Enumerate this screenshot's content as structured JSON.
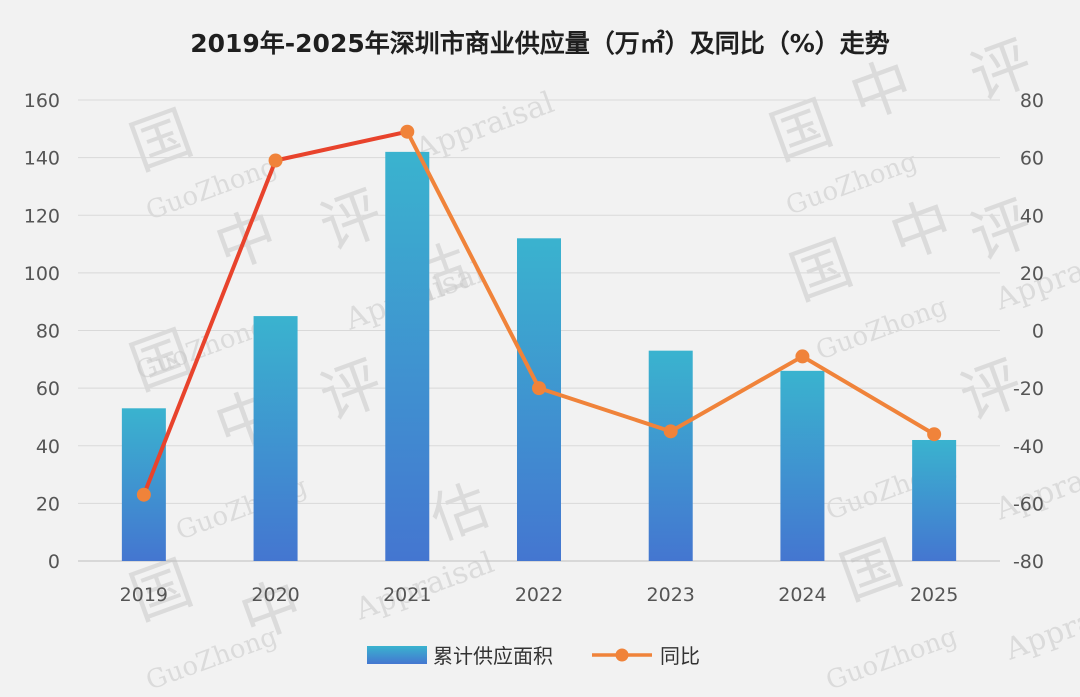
{
  "chart_data": {
    "type": "bar",
    "title": "2019年-2025年深圳市商业供应量（万㎡）及同比（%）走势",
    "categories": [
      "2019",
      "2020",
      "2021",
      "2022",
      "2023",
      "2024",
      "2025"
    ],
    "series": [
      {
        "name": "累计供应面积",
        "type": "bar",
        "axis": "left",
        "values": [
          53,
          85,
          142,
          112,
          73,
          66,
          42
        ]
      },
      {
        "name": "同比",
        "type": "line",
        "axis": "right",
        "values": [
          -57,
          59,
          69,
          -20,
          -35,
          -9,
          -36
        ]
      }
    ],
    "y_left": {
      "ylim": [
        0,
        160
      ],
      "ticks": [
        "0",
        "20",
        "40",
        "60",
        "80",
        "100",
        "120",
        "140",
        "160"
      ]
    },
    "y_right": {
      "ylim": [
        -80,
        80
      ],
      "ticks": [
        "-80",
        "-60",
        "-40",
        "-20",
        "0",
        "20",
        "40",
        "60",
        "80"
      ]
    },
    "grid": true,
    "legend_position": "bottom",
    "colors": {
      "bar_top": "#3ab3cf",
      "bar_bottom": "#4476d0",
      "line": "#f0833a",
      "line_segment_rise": "#e8432c"
    }
  },
  "watermark": {
    "texts": [
      "国",
      "中",
      "评",
      "估",
      "GuoZhong",
      "Appraisal"
    ]
  }
}
